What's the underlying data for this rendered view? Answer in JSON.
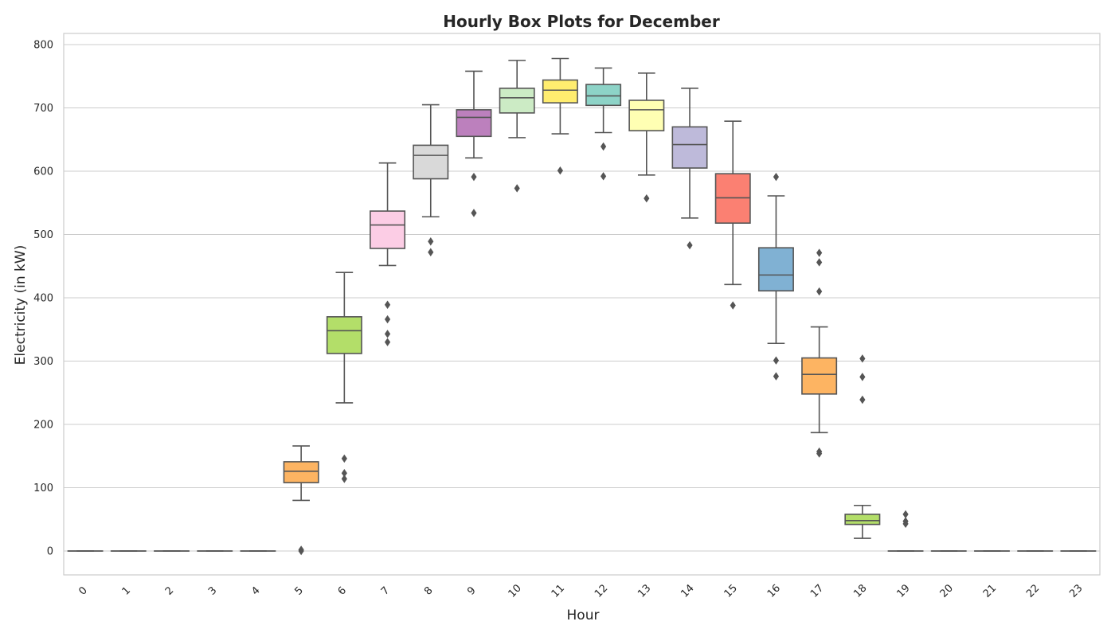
{
  "chart_data": {
    "type": "box",
    "title": "Hourly Box Plots for December",
    "xlabel": "Hour",
    "ylabel": "Electricity (in kW)",
    "ylim": [
      -38,
      818
    ],
    "yticks": [
      0,
      100,
      200,
      300,
      400,
      500,
      600,
      700,
      800
    ],
    "grid": true,
    "categories": [
      "0",
      "1",
      "2",
      "3",
      "4",
      "5",
      "6",
      "7",
      "8",
      "9",
      "10",
      "11",
      "12",
      "13",
      "14",
      "15",
      "16",
      "17",
      "18",
      "19",
      "20",
      "21",
      "22",
      "23"
    ],
    "boxes": [
      {
        "whislo": 0,
        "q1": 0,
        "med": 0,
        "q3": 0,
        "whishi": 0,
        "fliers": [],
        "color": "#66c2a5"
      },
      {
        "whislo": 0,
        "q1": 0,
        "med": 0,
        "q3": 0,
        "whishi": 0,
        "fliers": [],
        "color": "#fc8d62"
      },
      {
        "whislo": 0,
        "q1": 0,
        "med": 0,
        "q3": 0,
        "whishi": 0,
        "fliers": [],
        "color": "#8da0cb"
      },
      {
        "whislo": 0,
        "q1": 0,
        "med": 0,
        "q3": 0,
        "whishi": 0,
        "fliers": [],
        "color": "#e78ac3"
      },
      {
        "whislo": 0,
        "q1": 0,
        "med": 0,
        "q3": 0,
        "whishi": 0,
        "fliers": [],
        "color": "#a6d854"
      },
      {
        "whislo": 80,
        "q1": 108,
        "med": 126,
        "q3": 141,
        "whishi": 166,
        "fliers": [
          0,
          2
        ],
        "color": "#fdb462"
      },
      {
        "whislo": 234,
        "q1": 312,
        "med": 348,
        "q3": 370,
        "whishi": 440,
        "fliers": [
          146,
          123,
          114
        ],
        "color": "#b3de69"
      },
      {
        "whislo": 451,
        "q1": 478,
        "med": 515,
        "q3": 537,
        "whishi": 613,
        "fliers": [
          389,
          366,
          343,
          330
        ],
        "color": "#fccde5"
      },
      {
        "whislo": 528,
        "q1": 588,
        "med": 625,
        "q3": 641,
        "whishi": 705,
        "fliers": [
          489,
          472
        ],
        "color": "#d9d9d9"
      },
      {
        "whislo": 621,
        "q1": 655,
        "med": 685,
        "q3": 697,
        "whishi": 758,
        "fliers": [
          591,
          534
        ],
        "color": "#bc80bd"
      },
      {
        "whislo": 653,
        "q1": 692,
        "med": 716,
        "q3": 731,
        "whishi": 775,
        "fliers": [
          573
        ],
        "color": "#ccebc5"
      },
      {
        "whislo": 659,
        "q1": 708,
        "med": 728,
        "q3": 744,
        "whishi": 778,
        "fliers": [
          601
        ],
        "color": "#ffed6f"
      },
      {
        "whislo": 661,
        "q1": 704,
        "med": 719,
        "q3": 737,
        "whishi": 763,
        "fliers": [
          639,
          592
        ],
        "color": "#8dd3c7"
      },
      {
        "whislo": 594,
        "q1": 664,
        "med": 697,
        "q3": 712,
        "whishi": 755,
        "fliers": [
          557
        ],
        "color": "#ffffb3"
      },
      {
        "whislo": 526,
        "q1": 605,
        "med": 642,
        "q3": 670,
        "whishi": 731,
        "fliers": [
          483
        ],
        "color": "#bebada"
      },
      {
        "whislo": 421,
        "q1": 518,
        "med": 558,
        "q3": 596,
        "whishi": 679,
        "fliers": [
          388
        ],
        "color": "#fb8072"
      },
      {
        "whislo": 328,
        "q1": 411,
        "med": 436,
        "q3": 479,
        "whishi": 561,
        "fliers": [
          591,
          301,
          276
        ],
        "color": "#80b1d3"
      },
      {
        "whislo": 187,
        "q1": 248,
        "med": 279,
        "q3": 305,
        "whishi": 354,
        "fliers": [
          471,
          456,
          410,
          157,
          154
        ],
        "color": "#fdb462"
      },
      {
        "whislo": 20,
        "q1": 42,
        "med": 48,
        "q3": 58,
        "whishi": 72,
        "fliers": [
          304,
          275,
          239
        ],
        "color": "#b3de69"
      },
      {
        "whislo": 0,
        "q1": 0,
        "med": 0,
        "q3": 0,
        "whishi": 0,
        "fliers": [
          58,
          47,
          43
        ],
        "color": "#fccde5"
      },
      {
        "whislo": 0,
        "q1": 0,
        "med": 0,
        "q3": 0,
        "whishi": 0,
        "fliers": [],
        "color": "#d9d9d9"
      },
      {
        "whislo": 0,
        "q1": 0,
        "med": 0,
        "q3": 0,
        "whishi": 0,
        "fliers": [],
        "color": "#bc80bd"
      },
      {
        "whislo": 0,
        "q1": 0,
        "med": 0,
        "q3": 0,
        "whishi": 0,
        "fliers": [],
        "color": "#ccebc5"
      },
      {
        "whislo": 0,
        "q1": 0,
        "med": 0,
        "q3": 0,
        "whishi": 0,
        "fliers": [],
        "color": "#ffed6f"
      }
    ]
  }
}
